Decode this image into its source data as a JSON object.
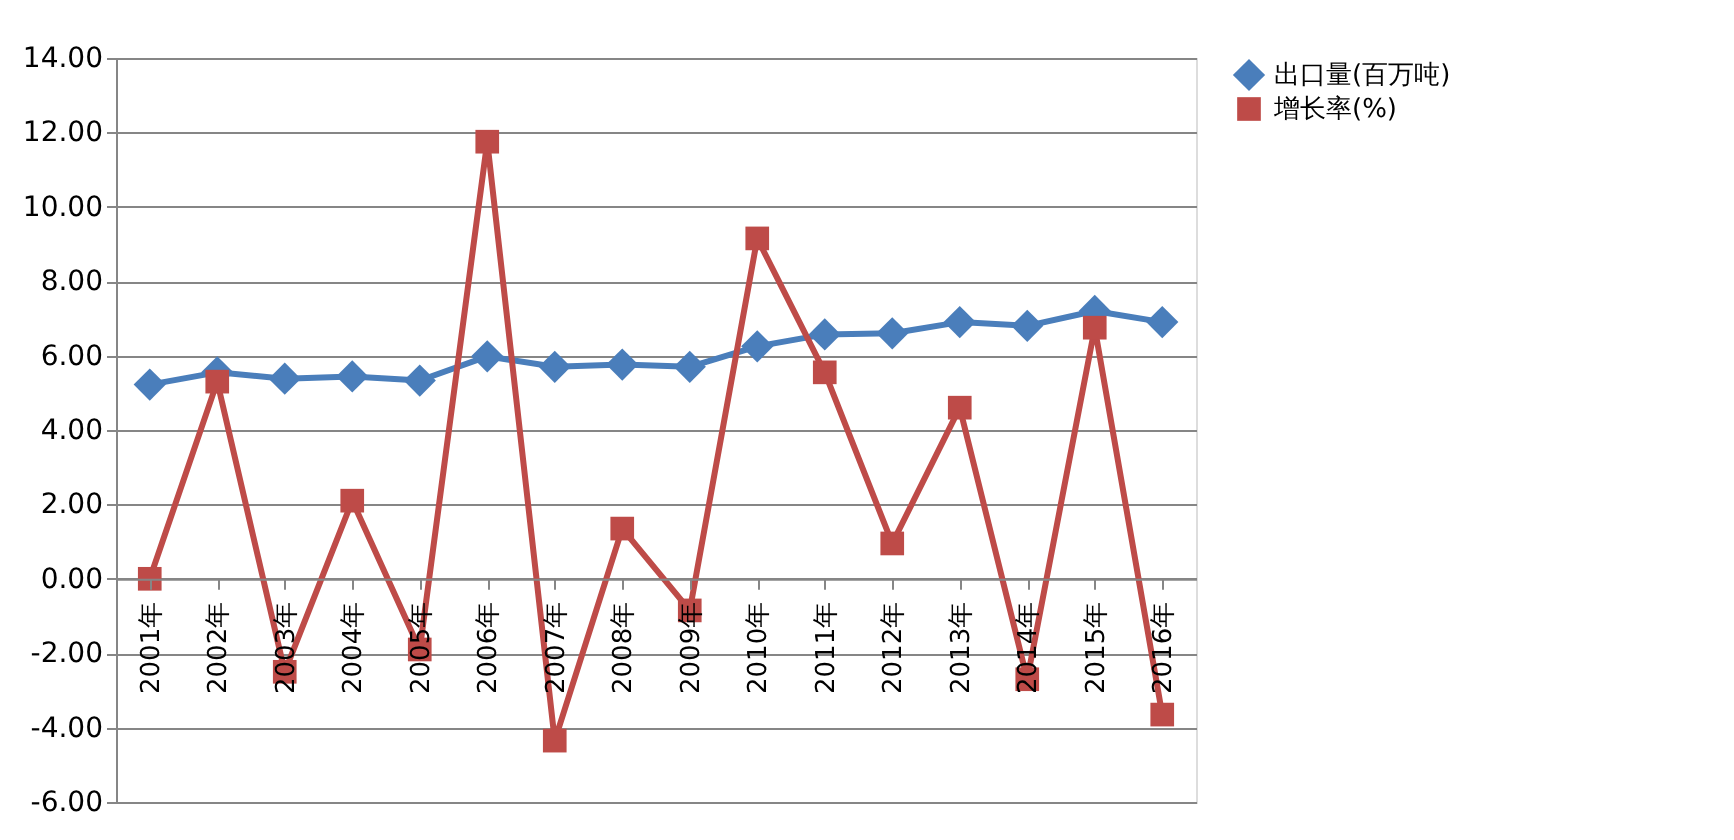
{
  "chart_data": {
    "type": "line",
    "categories": [
      "2001年",
      "2002年",
      "2003年",
      "2004年",
      "2005年",
      "2006年",
      "2007年",
      "2008年",
      "2009年",
      "2010年",
      "2011年",
      "2012年",
      "2013年",
      "2014年",
      "2015年",
      "2016年"
    ],
    "series": [
      {
        "name": "出口量(百万吨)",
        "color": "#4a7ebb",
        "marker": "diamond",
        "values": [
          5.22,
          5.55,
          5.38,
          5.44,
          5.33,
          5.98,
          5.7,
          5.76,
          5.7,
          6.25,
          6.57,
          6.6,
          6.9,
          6.8,
          7.2,
          6.9
        ]
      },
      {
        "name": "增长率(%)",
        "color": "#be4b48",
        "marker": "square",
        "values": [
          0.0,
          5.3,
          -2.5,
          2.1,
          -1.9,
          11.75,
          -4.35,
          1.35,
          -0.85,
          9.15,
          5.55,
          0.95,
          4.6,
          -2.7,
          6.75,
          -3.65
        ]
      }
    ],
    "ylim": [
      -6,
      14
    ],
    "yticks": [
      {
        "value": -6,
        "label": "-6.00"
      },
      {
        "value": -4,
        "label": "-4.00"
      },
      {
        "value": -2,
        "label": "-2.00"
      },
      {
        "value": 0,
        "label": "0.00"
      },
      {
        "value": 2,
        "label": "2.00"
      },
      {
        "value": 4,
        "label": "4.00"
      },
      {
        "value": 6,
        "label": "6.00"
      },
      {
        "value": 8,
        "label": "8.00"
      },
      {
        "value": 10,
        "label": "10.00"
      },
      {
        "value": 12,
        "label": "12.00"
      },
      {
        "value": 14,
        "label": "14.00"
      }
    ],
    "grid": "y",
    "legend": "right",
    "line_style": "solid"
  }
}
